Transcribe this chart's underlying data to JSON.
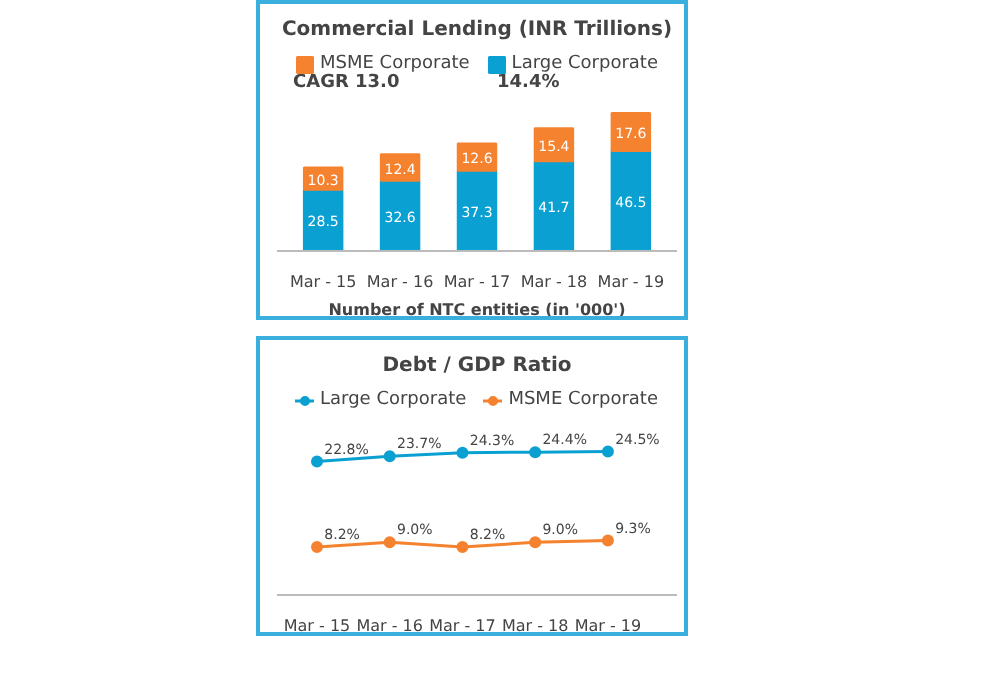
{
  "chart_data": [
    {
      "type": "bar",
      "title": "Commercial Lending (INR Trillions)",
      "xlabel": "Number of NTC entities (in '000')",
      "categories": [
        "Mar - 15",
        "Mar - 16",
        "Mar - 17",
        "Mar - 18",
        "Mar - 19"
      ],
      "stacked": true,
      "data_labels": true,
      "legend": "top",
      "grid": false,
      "annotations": [
        "CAGR  13.0",
        "14.4%"
      ],
      "series": [
        {
          "name": "Large Corporate",
          "color": "#0aa0d2",
          "values": [
            28.5,
            32.6,
            37.3,
            41.7,
            46.5
          ]
        },
        {
          "name": "MSME Corporate",
          "color": "#f5822f",
          "values": [
            10.3,
            12.4,
            12.6,
            15.4,
            17.6
          ]
        }
      ]
    },
    {
      "type": "line",
      "title": "Debt / GDP Ratio",
      "categories": [
        "Mar - 15",
        "Mar - 16",
        "Mar - 17",
        "Mar - 18",
        "Mar - 19"
      ],
      "legend": "top",
      "grid": false,
      "marker": "circle",
      "line_style": "solid",
      "series": [
        {
          "name": "Large Corporate",
          "color": "#0aa0d2",
          "values": [
            22.8,
            23.7,
            24.3,
            24.4,
            24.5
          ],
          "value_labels": [
            "22.8%",
            "23.7%",
            "24.3%",
            "24.4%",
            "24.5%"
          ]
        },
        {
          "name": "MSME Corporate",
          "color": "#f5822f",
          "values": [
            8.2,
            9.0,
            8.2,
            9.0,
            9.3
          ],
          "value_labels": [
            "8.2%",
            "9.0%",
            "8.2%",
            "9.0%",
            "9.3%"
          ]
        }
      ]
    }
  ]
}
